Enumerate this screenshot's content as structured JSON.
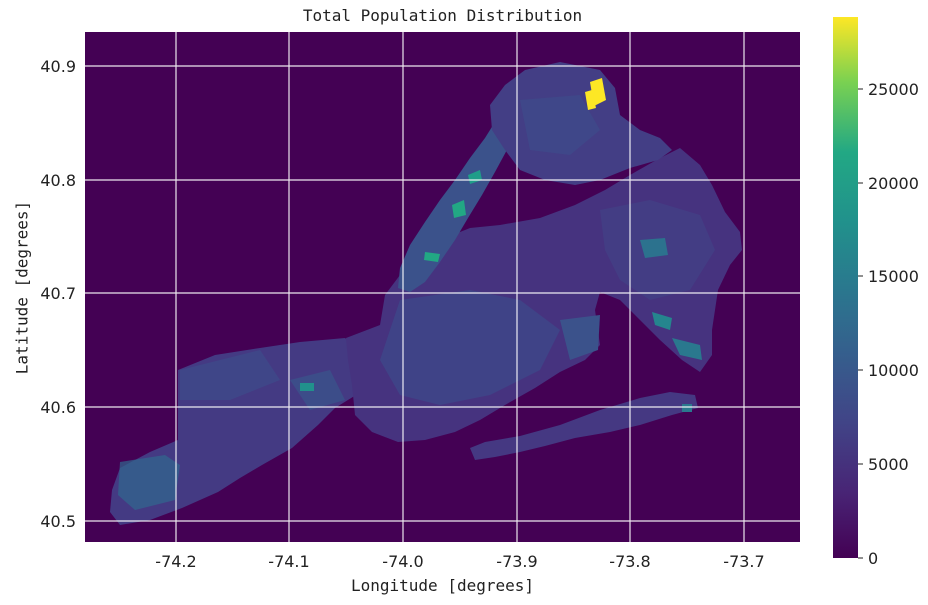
{
  "title": "Total Population Distribution",
  "xlabel": "Longitude [degrees]",
  "ylabel": "Latitude [degrees]",
  "x_ticks": [
    "-74.2",
    "-74.1",
    "-74.0",
    "-73.9",
    "-73.8",
    "-73.7"
  ],
  "y_ticks": [
    "40.9",
    "40.8",
    "40.7",
    "40.6",
    "40.5"
  ],
  "colorbar": {
    "ticks": [
      "0",
      "5000",
      "10000",
      "15000",
      "20000",
      "25000"
    ],
    "min": 0,
    "max": 28800,
    "colormap": "viridis"
  },
  "map": {
    "background_color": "#440154",
    "max_hotspot": {
      "lon": -73.825,
      "lat": 40.875,
      "value": 28000
    }
  }
}
